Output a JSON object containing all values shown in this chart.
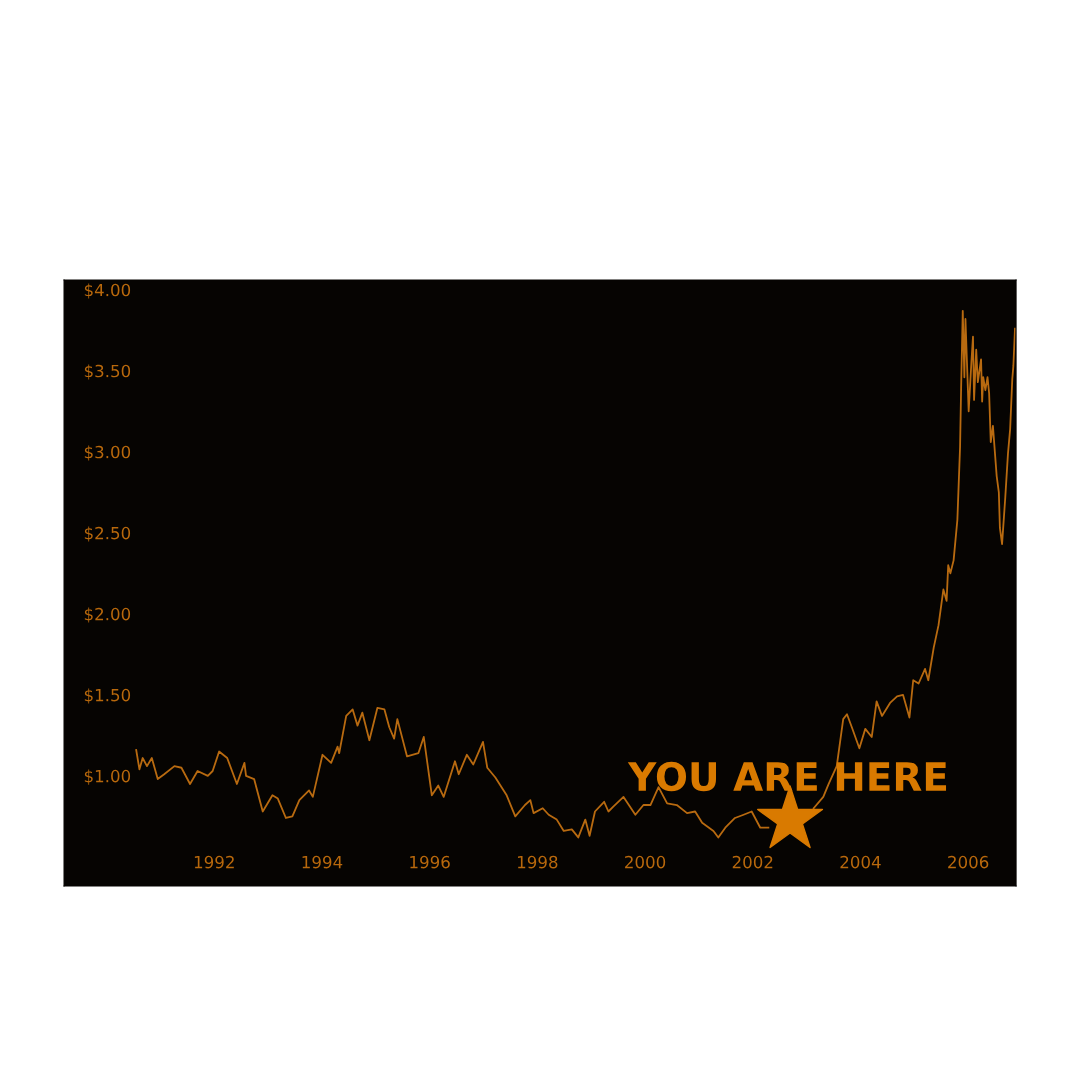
{
  "chart_data": {
    "type": "line",
    "x": [
      1990.55,
      1990.61,
      1990.67,
      1990.75,
      1990.84,
      1990.95,
      1991.07,
      1991.26,
      1991.39,
      1991.55,
      1991.69,
      1991.88,
      1991.97,
      1992.09,
      1992.24,
      1992.42,
      1992.56,
      1992.59,
      1992.74,
      1992.9,
      1993.08,
      1993.18,
      1993.33,
      1993.45,
      1993.58,
      1993.76,
      1993.83,
      1994.01,
      1994.17,
      1994.29,
      1994.32,
      1994.45,
      1994.57,
      1994.66,
      1994.75,
      1994.88,
      1995.03,
      1995.16,
      1995.25,
      1995.34,
      1995.4,
      1995.58,
      1995.79,
      1995.89,
      1996.04,
      1996.16,
      1996.26,
      1996.47,
      1996.54,
      1996.69,
      1996.81,
      1996.99,
      1997.07,
      1997.22,
      1997.43,
      1997.59,
      1997.77,
      1997.87,
      1997.93,
      1998.1,
      1998.21,
      1998.36,
      1998.49,
      1998.64,
      1998.76,
      1998.89,
      1998.97,
      1999.07,
      1999.24,
      1999.32,
      1999.41,
      1999.6,
      1999.82,
      1999.97,
      2000.1,
      2000.25,
      2000.41,
      2000.59,
      2000.78,
      2000.93,
      2001.06,
      2001.27,
      2001.36,
      2001.49,
      2001.67,
      2001.83,
      2001.98,
      2002.14,
      2002.29,
      2002.97,
      2003.13,
      2003.31,
      2003.41,
      2003.56,
      2003.68,
      2003.75,
      2003.84,
      2003.98,
      2004.09,
      2004.21,
      2004.3,
      2004.4,
      2004.55,
      2004.68,
      2004.79,
      2004.91,
      2004.98,
      2005.08,
      2005.2,
      2005.26,
      2005.36,
      2005.45,
      2005.54,
      2005.6,
      2005.63,
      2005.67,
      2005.73,
      2005.8,
      2005.85,
      2005.87,
      2005.9,
      2005.93,
      2005.95,
      2006.01,
      2006.06,
      2006.09,
      2006.11,
      2006.15,
      2006.18,
      2006.24,
      2006.26,
      2006.28,
      2006.32,
      2006.36,
      2006.39,
      2006.42,
      2006.46,
      2006.53,
      2006.57,
      2006.59,
      2006.63,
      2006.69,
      2006.74,
      2006.78,
      2006.82,
      2006.84,
      2006.87
    ],
    "series": [
      {
        "color": "#b86a10",
        "values": [
          1.16,
          1.04,
          1.11,
          1.06,
          1.11,
          0.98,
          1.01,
          1.06,
          1.05,
          0.95,
          1.03,
          1.0,
          1.03,
          1.15,
          1.11,
          0.95,
          1.08,
          1.0,
          0.98,
          0.78,
          0.88,
          0.86,
          0.74,
          0.75,
          0.85,
          0.91,
          0.87,
          1.13,
          1.08,
          1.18,
          1.14,
          1.37,
          1.41,
          1.31,
          1.39,
          1.22,
          1.42,
          1.41,
          1.3,
          1.23,
          1.35,
          1.12,
          1.14,
          1.24,
          0.88,
          0.94,
          0.87,
          1.09,
          1.01,
          1.13,
          1.07,
          1.21,
          1.05,
          0.99,
          0.88,
          0.75,
          0.82,
          0.85,
          0.77,
          0.8,
          0.76,
          0.73,
          0.66,
          0.67,
          0.62,
          0.73,
          0.63,
          0.78,
          0.84,
          0.78,
          0.81,
          0.87,
          0.76,
          0.82,
          0.82,
          0.93,
          0.83,
          0.82,
          0.77,
          0.78,
          0.71,
          0.66,
          0.62,
          0.68,
          0.74,
          0.76,
          0.78,
          0.68,
          0.68,
          null,
          0.8,
          0.87,
          0.95,
          1.06,
          1.35,
          1.38,
          1.3,
          1.17,
          1.29,
          1.24,
          1.46,
          1.37,
          1.45,
          1.49,
          1.5,
          1.36,
          1.59,
          1.57,
          1.66,
          1.59,
          1.79,
          1.93,
          2.15,
          2.08,
          2.3,
          2.25,
          2.33,
          2.58,
          3.03,
          3.4,
          3.87,
          3.46,
          3.82,
          3.25,
          3.55,
          3.71,
          3.32,
          3.63,
          3.43,
          3.57,
          3.31,
          3.46,
          3.38,
          3.46,
          3.36,
          3.06,
          3.16,
          2.85,
          2.75,
          2.53,
          2.43,
          2.72,
          2.99,
          3.14,
          3.45,
          3.53,
          3.76
        ]
      }
    ],
    "xlim": [
      1989.21,
      2006.89
    ],
    "ylim": [
      0.32,
      4.06
    ],
    "xticks": [
      1992,
      1994,
      1996,
      1998,
      2000,
      2002,
      2004,
      2006
    ],
    "yticks": [
      {
        "value": 1.0,
        "label": "$1.00"
      },
      {
        "value": 1.5,
        "label": "$1.50"
      },
      {
        "value": 2.0,
        "label": "$2.00"
      },
      {
        "value": 2.5,
        "label": "$2.50"
      },
      {
        "value": 3.0,
        "label": "$3.00"
      },
      {
        "value": 3.5,
        "label": "$3.50"
      },
      {
        "value": 4.0,
        "label": "$4.00"
      }
    ],
    "annotations": [
      "YOU ARE HERE"
    ],
    "grid": false,
    "legend": false,
    "marker": "none",
    "line_style": "solid"
  }
}
